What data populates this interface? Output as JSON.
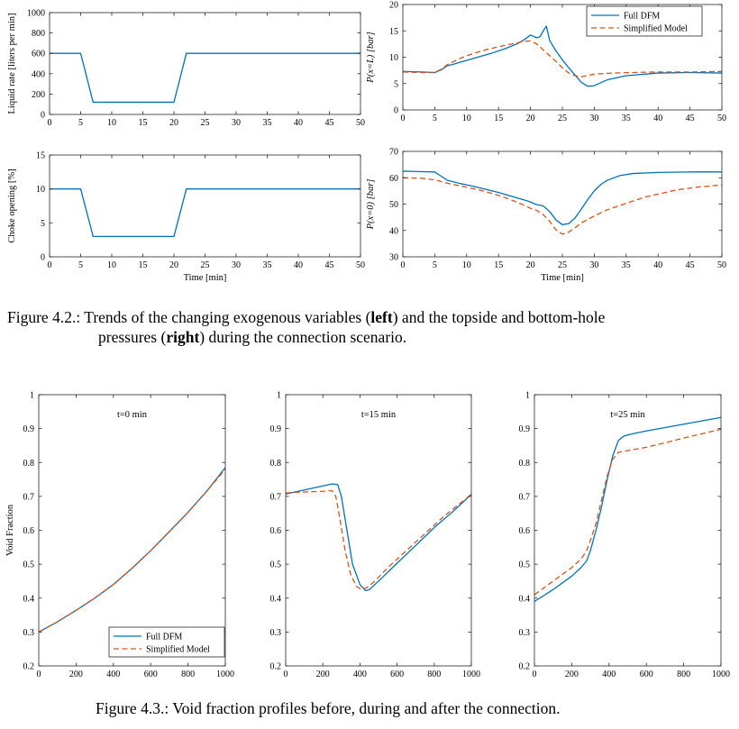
{
  "colors": {
    "blue": "#0072bd",
    "red": "#d95319",
    "axis": "#262626"
  },
  "captions": {
    "fig42_label": "Figure 4.2.:",
    "fig42_t1": " Trends of the changing exogenous variables (",
    "fig42_b1": "left",
    "fig42_t2": ") and the topside and bottom-hole",
    "fig42_t3": "pressures (",
    "fig42_b2": "right",
    "fig42_t4": ") during the connection scenario.",
    "fig43": "Figure 4.3.: Void fraction profiles before, during and after the connection."
  },
  "chart_data": [
    {
      "type": "line",
      "title": "",
      "xlabel": "",
      "ylabel": "Liquid rate [liters per min]",
      "xlim": [
        0,
        50
      ],
      "ylim": [
        0,
        1000
      ],
      "xticks": [
        0,
        5,
        10,
        15,
        20,
        25,
        30,
        35,
        40,
        45,
        50
      ],
      "yticks": [
        0,
        200,
        400,
        600,
        800,
        1000
      ],
      "grid": false,
      "series": [
        {
          "color": "blue",
          "dash": false,
          "x": [
            0,
            5,
            7,
            20,
            22,
            50
          ],
          "y": [
            600,
            600,
            120,
            120,
            600,
            600
          ]
        }
      ]
    },
    {
      "type": "line",
      "title": "",
      "xlabel": "",
      "ylabel": "P(x=L) [bar]",
      "xlim": [
        0,
        50
      ],
      "ylim": [
        0,
        20
      ],
      "xticks": [
        0,
        5,
        10,
        15,
        20,
        25,
        30,
        35,
        40,
        45,
        50
      ],
      "yticks": [
        0,
        5,
        10,
        15,
        20
      ],
      "grid": false,
      "legend": "top-right",
      "series": [
        {
          "name": "Full DFM",
          "color": "blue",
          "dash": false,
          "x": [
            0,
            3,
            5,
            6,
            7,
            8,
            10,
            12,
            14,
            16,
            18,
            19,
            20,
            21,
            21.5,
            22,
            22.5,
            23,
            24,
            25,
            26,
            27,
            28,
            29,
            30,
            32,
            35,
            40,
            45,
            50
          ],
          "y": [
            7.3,
            7.2,
            7.1,
            7.6,
            8.4,
            8.7,
            9.4,
            10.1,
            10.8,
            11.6,
            12.6,
            13.3,
            14.2,
            13.7,
            13.9,
            15,
            15.9,
            13.2,
            11.2,
            9.5,
            8,
            6.6,
            5.2,
            4.5,
            4.6,
            5.7,
            6.5,
            7,
            7.1,
            7
          ]
        },
        {
          "name": "Simplified Model",
          "color": "red",
          "dash": true,
          "x": [
            0,
            3,
            5,
            6,
            7,
            9,
            11,
            13,
            15,
            17,
            19,
            20,
            21,
            22,
            23,
            24,
            25,
            26,
            27,
            28,
            30,
            33,
            36,
            40,
            45,
            50
          ],
          "y": [
            7.2,
            7.1,
            7.1,
            7.7,
            8.6,
            9.8,
            10.7,
            11.4,
            12,
            12.5,
            13,
            13.1,
            12.5,
            11.4,
            10.3,
            9.2,
            8,
            7,
            6.5,
            6.3,
            6.8,
            7,
            7.1,
            7.2,
            7.2,
            7.3
          ]
        }
      ]
    },
    {
      "type": "line",
      "title": "",
      "xlabel": "Time [min]",
      "ylabel": "Choke opening [%]",
      "xlim": [
        0,
        50
      ],
      "ylim": [
        0,
        15
      ],
      "xticks": [
        0,
        5,
        10,
        15,
        20,
        25,
        30,
        35,
        40,
        45,
        50
      ],
      "yticks": [
        0,
        5,
        10,
        15
      ],
      "grid": false,
      "series": [
        {
          "color": "blue",
          "dash": false,
          "x": [
            0,
            5,
            7,
            20,
            22,
            50
          ],
          "y": [
            10,
            10,
            3,
            3,
            10,
            10
          ]
        }
      ]
    },
    {
      "type": "line",
      "title": "",
      "xlabel": "Time [min]",
      "ylabel": "P(x=0) [bar]",
      "xlim": [
        0,
        50
      ],
      "ylim": [
        30,
        70
      ],
      "xticks": [
        0,
        5,
        10,
        15,
        20,
        25,
        30,
        35,
        40,
        45,
        50
      ],
      "yticks": [
        30,
        40,
        50,
        60,
        70
      ],
      "grid": false,
      "series": [
        {
          "color": "blue",
          "dash": false,
          "x": [
            0,
            3,
            5,
            6,
            7,
            9,
            11,
            13,
            15,
            17,
            19,
            20,
            21,
            22,
            23,
            24,
            25,
            26,
            27,
            28,
            29,
            30,
            31,
            32,
            34,
            36,
            40,
            45,
            50
          ],
          "y": [
            62.5,
            62.3,
            62.2,
            60.6,
            59,
            57.8,
            56.8,
            55.6,
            54.4,
            53,
            51.6,
            50.8,
            49.8,
            49.3,
            47.2,
            44,
            42.2,
            42.6,
            44.8,
            48.2,
            51.8,
            55,
            57.4,
            59,
            60.8,
            61.6,
            62,
            62.2,
            62.2
          ]
        },
        {
          "color": "red",
          "dash": true,
          "x": [
            0,
            3,
            5,
            7,
            9,
            11,
            13,
            15,
            17,
            19,
            20,
            21,
            22,
            23,
            24,
            25,
            26,
            27,
            28,
            30,
            32,
            35,
            38,
            40,
            43,
            46,
            50
          ],
          "y": [
            60,
            59.8,
            59.2,
            57.9,
            56.9,
            55.9,
            54.7,
            53.3,
            51.6,
            49.6,
            48.4,
            47.6,
            46,
            43.5,
            40.2,
            38.6,
            39.4,
            41,
            42.9,
            45.5,
            47.8,
            50.3,
            52.7,
            53.8,
            55.4,
            56.4,
            57.3
          ]
        }
      ]
    },
    {
      "type": "line",
      "title": "t=0 min",
      "xlabel": "",
      "ylabel": "Void Fraction",
      "xlim": [
        0,
        1000
      ],
      "ylim": [
        0.2,
        1
      ],
      "xticks": [
        0,
        200,
        400,
        600,
        800,
        1000
      ],
      "yticks": [
        0.2,
        0.3,
        0.4,
        0.5,
        0.6,
        0.7,
        0.8,
        0.9,
        1
      ],
      "grid": false,
      "legend": "bottom-right",
      "series": [
        {
          "name": "Full DFM",
          "color": "blue",
          "dash": false,
          "x": [
            0,
            100,
            200,
            300,
            400,
            500,
            600,
            700,
            800,
            900,
            1000
          ],
          "y": [
            0.3,
            0.33,
            0.364,
            0.4,
            0.44,
            0.488,
            0.54,
            0.596,
            0.653,
            0.715,
            0.785
          ]
        },
        {
          "name": "Simplified Model",
          "color": "red",
          "dash": true,
          "x": [
            0,
            100,
            200,
            300,
            400,
            500,
            600,
            700,
            800,
            900,
            1000
          ],
          "y": [
            0.3,
            0.33,
            0.364,
            0.4,
            0.44,
            0.488,
            0.54,
            0.596,
            0.653,
            0.715,
            0.78
          ]
        }
      ]
    },
    {
      "type": "line",
      "title": "t=15 min",
      "xlabel": "",
      "ylabel": "",
      "xlim": [
        0,
        1000
      ],
      "ylim": [
        0.2,
        1
      ],
      "xticks": [
        0,
        200,
        400,
        600,
        800,
        1000
      ],
      "yticks": [
        0.2,
        0.3,
        0.4,
        0.5,
        0.6,
        0.7,
        0.8,
        0.9,
        1
      ],
      "grid": false,
      "series": [
        {
          "color": "blue",
          "dash": false,
          "x": [
            0,
            50,
            100,
            150,
            200,
            250,
            280,
            300,
            330,
            360,
            400,
            430,
            450,
            500,
            600,
            700,
            800,
            900,
            1000
          ],
          "y": [
            0.707,
            0.713,
            0.719,
            0.725,
            0.731,
            0.737,
            0.735,
            0.7,
            0.6,
            0.5,
            0.44,
            0.422,
            0.425,
            0.45,
            0.503,
            0.555,
            0.608,
            0.655,
            0.706
          ]
        },
        {
          "color": "red",
          "dash": true,
          "x": [
            0,
            50,
            100,
            150,
            200,
            250,
            270,
            290,
            320,
            350,
            380,
            410,
            440,
            480,
            550,
            650,
            750,
            850,
            1000
          ],
          "y": [
            0.71,
            0.712,
            0.713,
            0.714,
            0.715,
            0.717,
            0.7,
            0.64,
            0.54,
            0.47,
            0.435,
            0.425,
            0.432,
            0.45,
            0.49,
            0.54,
            0.59,
            0.64,
            0.706
          ]
        }
      ]
    },
    {
      "type": "line",
      "title": "t=25 min",
      "xlabel": "",
      "ylabel": "",
      "xlim": [
        0,
        1000
      ],
      "ylim": [
        0.2,
        1
      ],
      "xticks": [
        0,
        200,
        400,
        600,
        800,
        1000
      ],
      "yticks": [
        0.2,
        0.3,
        0.4,
        0.5,
        0.6,
        0.7,
        0.8,
        0.9,
        1
      ],
      "grid": false,
      "series": [
        {
          "color": "blue",
          "dash": false,
          "x": [
            0,
            100,
            200,
            250,
            280,
            300,
            330,
            360,
            390,
            420,
            450,
            480,
            520,
            600,
            700,
            800,
            900,
            1000
          ],
          "y": [
            0.39,
            0.425,
            0.465,
            0.49,
            0.51,
            0.54,
            0.6,
            0.67,
            0.75,
            0.82,
            0.865,
            0.878,
            0.884,
            0.893,
            0.903,
            0.913,
            0.923,
            0.933
          ]
        },
        {
          "color": "red",
          "dash": true,
          "x": [
            0,
            100,
            200,
            250,
            280,
            300,
            330,
            360,
            390,
            420,
            450,
            500,
            600,
            700,
            800,
            900,
            1000
          ],
          "y": [
            0.41,
            0.45,
            0.49,
            0.515,
            0.54,
            0.57,
            0.62,
            0.69,
            0.76,
            0.81,
            0.83,
            0.835,
            0.845,
            0.858,
            0.872,
            0.885,
            0.898
          ]
        }
      ]
    }
  ]
}
